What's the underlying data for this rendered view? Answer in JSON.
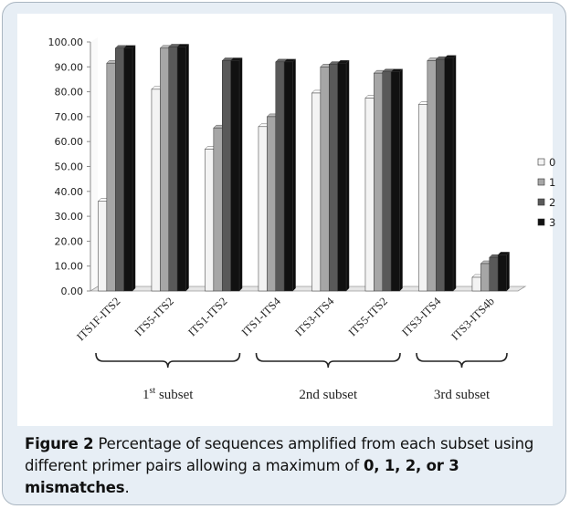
{
  "figure": {
    "caption_label": "Figure 2",
    "caption_text": "Percentage of sequences amplified from each subset using different primer pairs allowing a maximum of ",
    "caption_bold": "0, 1, 2, or 3 mismatches",
    "caption_end": "."
  },
  "chart_data": {
    "type": "bar",
    "categories": [
      "ITS1F-ITS2",
      "ITS5-ITS2",
      "ITS1-ITS2",
      "ITS1-ITS4",
      "ITS3-ITS4",
      "ITS5-ITS2",
      "ITS3-ITS4",
      "ITS3-ITS4b"
    ],
    "series": [
      {
        "name": "0",
        "color": "#f3f3f3",
        "values": [
          36.0,
          81.0,
          57.0,
          66.0,
          79.5,
          77.5,
          75.0,
          5.5
        ]
      },
      {
        "name": "1",
        "color": "#a6a6a6",
        "values": [
          91.5,
          97.5,
          65.5,
          70.0,
          90.0,
          87.5,
          92.5,
          11.0
        ]
      },
      {
        "name": "2",
        "color": "#595959",
        "values": [
          97.5,
          98.0,
          92.5,
          92.0,
          91.0,
          88.0,
          93.0,
          13.5
        ]
      },
      {
        "name": "3",
        "color": "#111111",
        "values": [
          97.5,
          98.0,
          92.5,
          92.0,
          91.5,
          88.0,
          93.5,
          14.5
        ]
      }
    ],
    "yticks": [
      "0.00",
      "10.00",
      "20.00",
      "30.00",
      "40.00",
      "50.00",
      "60.00",
      "70.00",
      "80.00",
      "90.00",
      "100.00"
    ],
    "ylim": [
      0,
      100
    ],
    "legend_position": "right",
    "groups": [
      {
        "label_main": "1",
        "label_sup": "st",
        "label_rest": " subset",
        "from": 0,
        "to": 2
      },
      {
        "label_main": "2nd subset",
        "label_sup": "",
        "label_rest": "",
        "from": 3,
        "to": 5
      },
      {
        "label_main": "3rd subset",
        "label_sup": "",
        "label_rest": "",
        "from": 6,
        "to": 7
      }
    ]
  }
}
